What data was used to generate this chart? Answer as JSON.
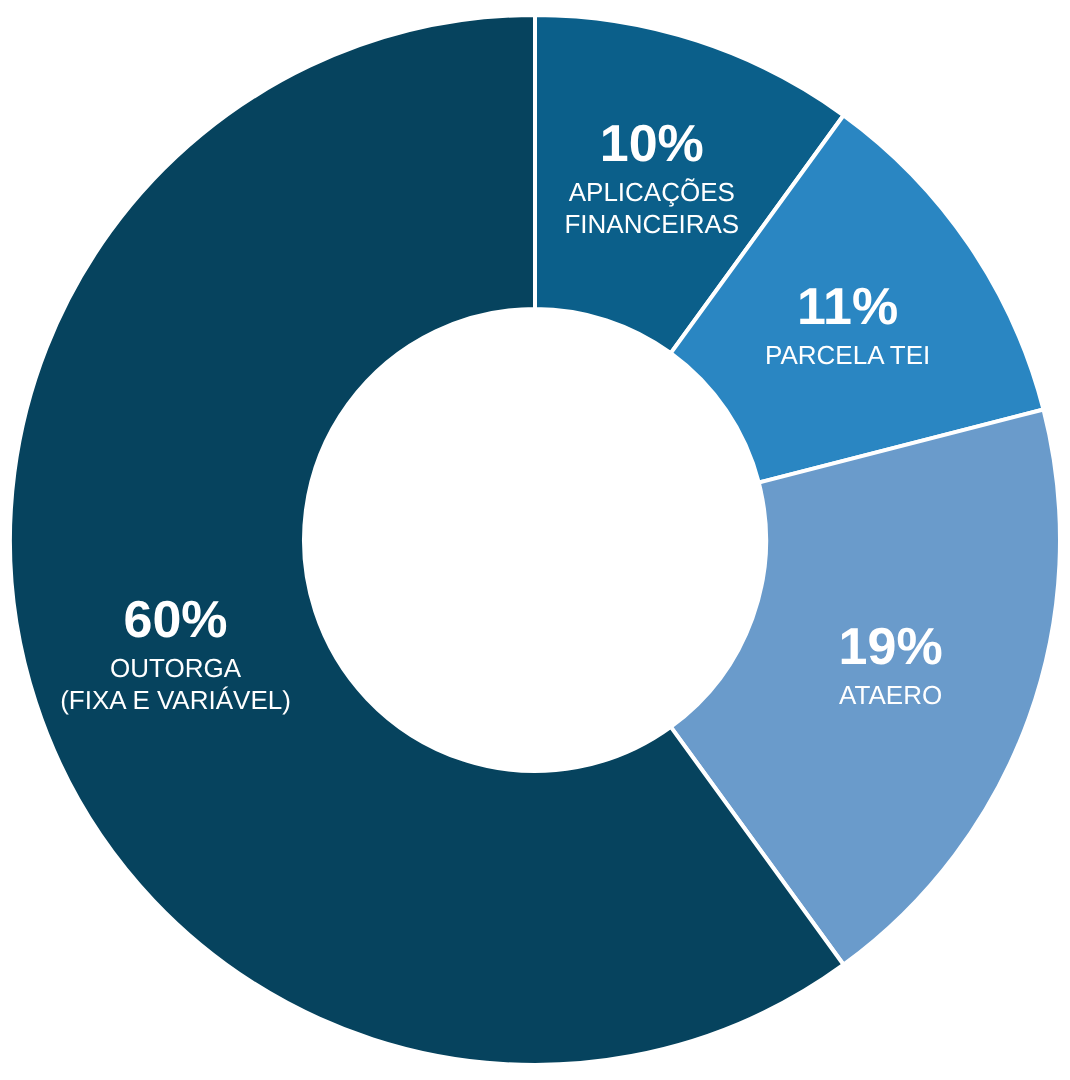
{
  "chart_data": {
    "type": "donut",
    "categories": [
      "APLICAÇÕES FINANCEIRAS",
      "PARCELA TEI",
      "ATAERO",
      "OUTORGA (FIXA E VARIÁVEL)"
    ],
    "values": [
      10,
      11,
      19,
      60
    ],
    "colors": [
      "#0b5f8a",
      "#2a86c2",
      "#6a9bcb",
      "#06435e"
    ],
    "value_labels": [
      "10%",
      "11%",
      "19%",
      "60%"
    ],
    "legend": false
  }
}
